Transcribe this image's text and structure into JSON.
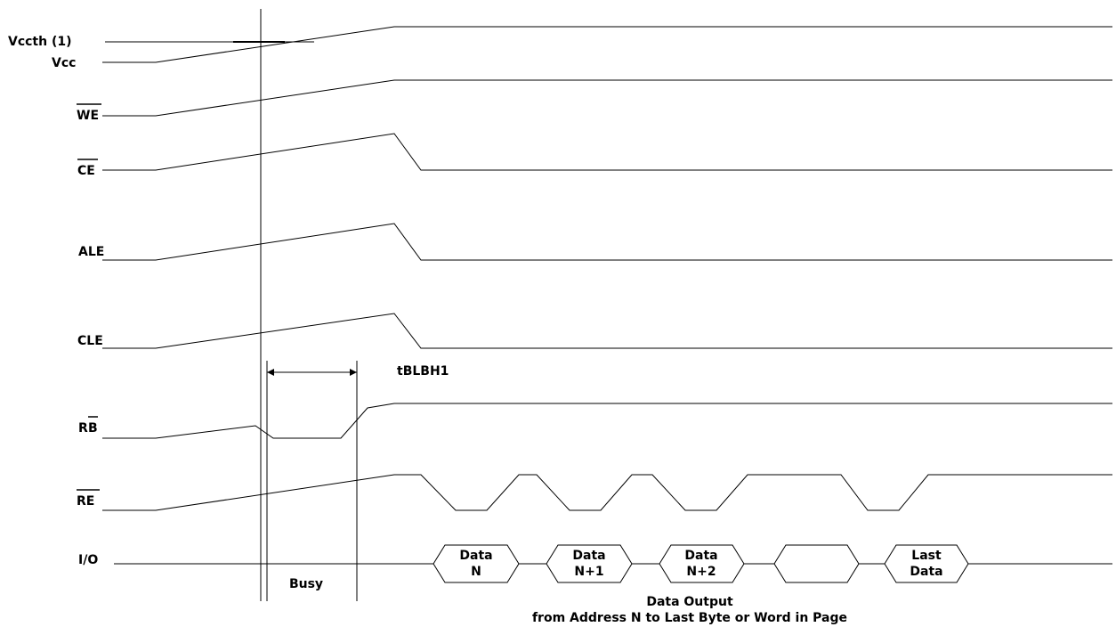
{
  "signals": {
    "vccth": "Vccth (1)",
    "vcc": "Vcc",
    "we": "WE",
    "ce": "CE",
    "ale": "ALE",
    "cle": "CLE",
    "rb_r": "R",
    "rb_b": "B",
    "re": "RE",
    "io": "I/O"
  },
  "timing": {
    "tblbh1": "tBLBH1",
    "busy": "Busy"
  },
  "data_cells": [
    {
      "line1": "Data",
      "line2": "N"
    },
    {
      "line1": "Data",
      "line2": "N+1"
    },
    {
      "line1": "Data",
      "line2": "N+2"
    },
    {
      "line1": "",
      "line2": ""
    },
    {
      "line1": "Last",
      "line2": "Data"
    }
  ],
  "caption": {
    "line1": "Data Output",
    "line2": "from Address N to Last Byte or Word in Page"
  }
}
